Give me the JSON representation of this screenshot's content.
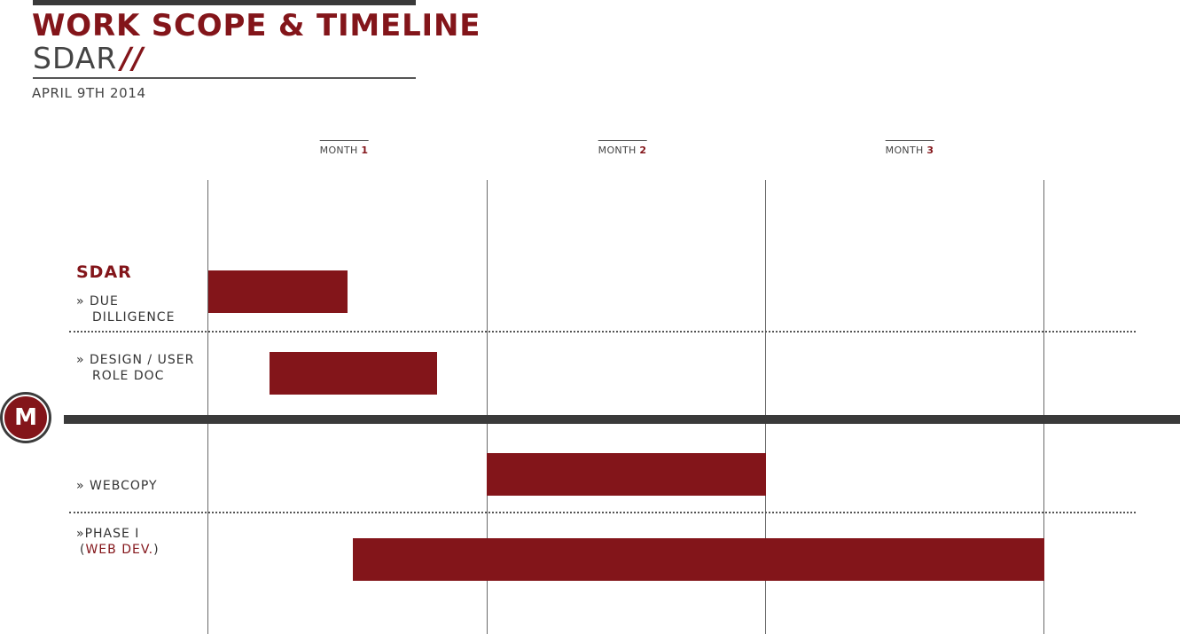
{
  "header": {
    "title": "WORK SCOPE & TIMELINE",
    "subtitle": "SDAR",
    "subtitle_mark": "//",
    "date": "APRIL 9TH 2014"
  },
  "months": [
    {
      "label": "MONTH",
      "number": "1"
    },
    {
      "label": "MONTH",
      "number": "2"
    },
    {
      "label": "MONTH",
      "number": "3"
    }
  ],
  "section": {
    "title": "SDAR"
  },
  "tasks": [
    {
      "line1": "» DUE",
      "line2": "DILLIGENCE",
      "start_month": 0.0,
      "end_month": 0.5
    },
    {
      "line1": "» DESIGN / USER",
      "line2": "ROLE DOC",
      "start_month": 0.22,
      "end_month": 0.82
    },
    {
      "line1": "» WEBCOPY",
      "start_month": 1.0,
      "end_month": 2.0
    },
    {
      "line1": "»PHASE I",
      "line2_open": "(",
      "line2_accent": "WEB DEV.",
      "line2_close": ")",
      "start_month": 0.52,
      "end_month": 3.0
    }
  ],
  "logo": {
    "glyph": "M"
  },
  "colors": {
    "accent": "#83151a",
    "dark": "#3a3a3a",
    "text": "#333333"
  }
}
